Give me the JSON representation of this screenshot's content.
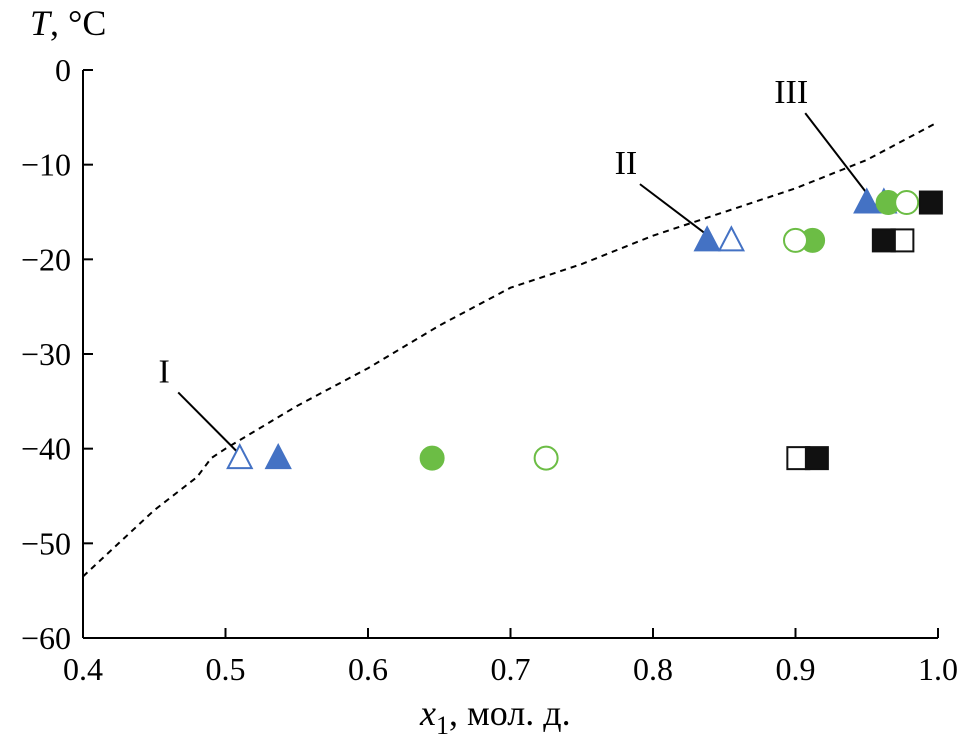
{
  "chart_data": {
    "type": "scatter",
    "title": "",
    "ylabel_italic": "T",
    "ylabel_unit": ", °C",
    "xlabel_var": "x",
    "xlabel_sub": "1",
    "xlabel_unit": ", мол. д.",
    "xlim": [
      0.4,
      1.0
    ],
    "ylim": [
      -60,
      0
    ],
    "grid": false,
    "x_ticks": [
      0.4,
      0.5,
      0.6,
      0.7,
      0.8,
      0.9,
      1.0
    ],
    "x_tick_labels": [
      "0.4",
      "0.5",
      "0.6",
      "0.7",
      "0.8",
      "0.9",
      "1.0"
    ],
    "y_ticks": [
      0,
      -10,
      -20,
      -30,
      -40,
      -50,
      -60
    ],
    "y_tick_labels": [
      "0",
      "−10",
      "−20",
      "−30",
      "−40",
      "−50",
      "−60"
    ],
    "line": {
      "name": "liquidus",
      "style": "dashed",
      "points": [
        [
          0.4,
          -53.5
        ],
        [
          0.45,
          -46.5
        ],
        [
          0.48,
          -43.0
        ],
        [
          0.49,
          -41.0
        ],
        [
          0.5,
          -40.0
        ],
        [
          0.55,
          -35.5
        ],
        [
          0.6,
          -31.5
        ],
        [
          0.65,
          -27.0
        ],
        [
          0.7,
          -23.0
        ],
        [
          0.75,
          -20.5
        ],
        [
          0.8,
          -17.5
        ],
        [
          0.85,
          -15.0
        ],
        [
          0.9,
          -12.5
        ],
        [
          0.95,
          -9.5
        ],
        [
          1.0,
          -5.5
        ]
      ]
    },
    "series": [
      {
        "name": "open-triangle",
        "marker": "triangle",
        "filled": false,
        "color": "#4472c4",
        "points": [
          [
            0.51,
            -41
          ],
          [
            0.855,
            -18
          ],
          [
            0.962,
            -14
          ]
        ]
      },
      {
        "name": "filled-triangle",
        "marker": "triangle",
        "filled": true,
        "color": "#4472c4",
        "points": [
          [
            0.537,
            -41
          ],
          [
            0.838,
            -18
          ],
          [
            0.95,
            -14
          ]
        ]
      },
      {
        "name": "filled-circle",
        "marker": "circle",
        "filled": true,
        "color": "#6cbd45",
        "points": [
          [
            0.645,
            -41
          ],
          [
            0.912,
            -18
          ],
          [
            0.965,
            -14
          ]
        ]
      },
      {
        "name": "open-circle",
        "marker": "circle",
        "filled": false,
        "color": "#6cbd45",
        "points": [
          [
            0.725,
            -41
          ],
          [
            0.9,
            -18
          ],
          [
            0.978,
            -14
          ]
        ]
      },
      {
        "name": "open-square",
        "marker": "square",
        "filled": false,
        "color": "#111111",
        "points": [
          [
            0.902,
            -41
          ],
          [
            0.975,
            -18
          ]
        ]
      },
      {
        "name": "filled-square",
        "marker": "square",
        "filled": true,
        "color": "#111111",
        "points": [
          [
            0.915,
            -41
          ],
          [
            0.962,
            -18
          ],
          [
            0.995,
            -14
          ]
        ]
      }
    ],
    "annotations": [
      {
        "text": "I",
        "point": [
          0.508,
          -40.3
        ],
        "label_at": [
          0.457,
          -33
        ]
      },
      {
        "text": "II",
        "point": [
          0.836,
          -17.2
        ],
        "label_at": [
          0.781,
          -11
        ]
      },
      {
        "text": "III",
        "point": [
          0.952,
          -13.4
        ],
        "label_at": [
          0.897,
          -3.5
        ]
      }
    ]
  }
}
